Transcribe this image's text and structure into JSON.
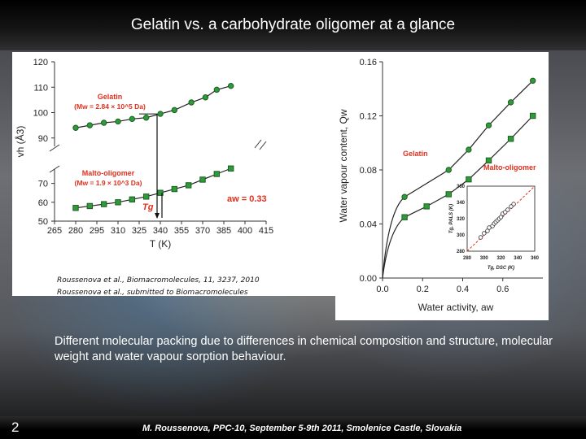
{
  "slide": {
    "title": "Gelatin vs. a carbohydrate oligomer at a glance",
    "page_number": "2",
    "footer": "M. Roussenova, PPC-10, September 5-9th 2011, Smolenice Castle, Slovakia",
    "description": "Different molecular packing  due to differences in chemical composition and structure, molecular weight and water vapour sorption behaviour.",
    "references": [
      "Roussenova et al., Biomacromolecules, 11, 3237, 2010",
      "Roussenova et al., submitted to Biomacromolecules"
    ]
  },
  "colors": {
    "accent_red": "#e0301e",
    "series_green": "#2f9a3a",
    "point_white": "#ffffff"
  },
  "chart_data": [
    {
      "type": "scatter",
      "xlabel": "T (K)",
      "ylabel": "vh (Å3)",
      "xlim": [
        265,
        415
      ],
      "ylim": [
        50,
        120
      ],
      "axis_break_y": [
        75,
        88
      ],
      "xticks": [
        "265",
        "280",
        "295",
        "310",
        "325",
        "340",
        "355",
        "370",
        "385",
        "400",
        "415"
      ],
      "yticks": [
        "50",
        "60",
        "70",
        "90",
        "100",
        "110",
        "120"
      ],
      "series": [
        {
          "name": "Gelatin",
          "subtitle": "(Mw = 2.84 × 10^5 Da)",
          "x": [
            280,
            290,
            300,
            310,
            320,
            330,
            340,
            350,
            362,
            372,
            380,
            390
          ],
          "y": [
            94,
            95,
            96,
            96.5,
            97.5,
            98,
            99.5,
            101,
            104,
            106,
            109,
            110.5
          ]
        },
        {
          "name": "Malto-oligomer",
          "subtitle": "(Mw = 1.9 × 10^3 Da)",
          "x": [
            280,
            290,
            300,
            310,
            320,
            330,
            340,
            350,
            360,
            370,
            380,
            390
          ],
          "y": [
            57,
            58,
            59,
            60,
            61.5,
            63,
            65,
            67,
            69,
            72,
            75,
            78
          ]
        }
      ],
      "annotations": {
        "tg_label": "Tg",
        "tg_x": 340,
        "aw_label": "aw = 0.33"
      }
    },
    {
      "type": "scatter",
      "xlabel": "Water activity, aw",
      "ylabel": "Water vapour content, Qw",
      "xlim": [
        0.0,
        0.8
      ],
      "ylim": [
        0.0,
        0.16
      ],
      "xticks": [
        "0.0",
        "0.2",
        "0.4",
        "0.6"
      ],
      "yticks": [
        "0.00",
        "0.04",
        "0.08",
        "0.12",
        "0.16"
      ],
      "series": [
        {
          "name": "Gelatin",
          "x": [
            0.11,
            0.33,
            0.43,
            0.53,
            0.64,
            0.75
          ],
          "y": [
            0.06,
            0.08,
            0.095,
            0.113,
            0.13,
            0.146
          ]
        },
        {
          "name": "Malto-oligomer",
          "x": [
            0.11,
            0.22,
            0.33,
            0.43,
            0.53,
            0.64,
            0.75
          ],
          "y": [
            0.045,
            0.053,
            0.062,
            0.073,
            0.087,
            0.103,
            0.12
          ]
        }
      ],
      "inset": {
        "xlabel": "Tg, DSC (K)",
        "ylabel": "Tg, PALS (K)",
        "xlim": [
          280,
          360
        ],
        "ylim": [
          280,
          360
        ],
        "xticks": [
          "280",
          "300",
          "320",
          "340",
          "360"
        ],
        "yticks": [
          "280",
          "300",
          "320",
          "340",
          "360"
        ],
        "x": [
          296,
          300,
          304,
          306,
          310,
          312,
          314,
          316,
          318,
          320,
          322,
          325,
          328,
          332,
          335
        ],
        "y": [
          297,
          302,
          305,
          309,
          311,
          314,
          316,
          318,
          320,
          322,
          326,
          328,
          331,
          335,
          338
        ]
      }
    }
  ]
}
